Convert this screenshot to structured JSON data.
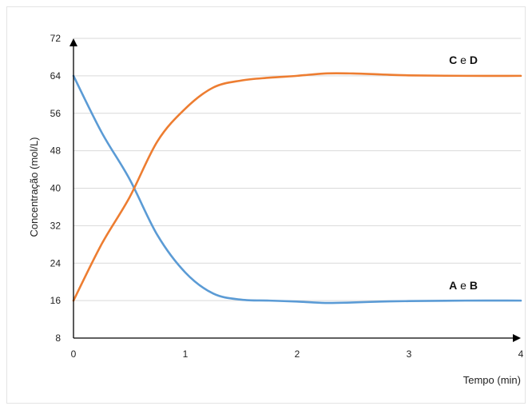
{
  "chart_data": {
    "type": "line",
    "xlabel": "Tempo (min)",
    "ylabel": "Concentração (mol/L)",
    "xlim": [
      0,
      4
    ],
    "ylim": [
      8,
      72
    ],
    "x_ticks": [
      "0",
      "1",
      "2",
      "3",
      "4"
    ],
    "y_ticks": [
      "8",
      "16",
      "24",
      "32",
      "40",
      "48",
      "56",
      "64",
      "72"
    ],
    "grid": "horizontal",
    "series": [
      {
        "name_parts": [
          "A",
          " e ",
          "B"
        ],
        "color": "#5b9bd5",
        "x": [
          0,
          0.25,
          0.5,
          0.75,
          1.0,
          1.25,
          1.5,
          1.75,
          2.0,
          2.25,
          2.5,
          2.75,
          3.0,
          3.5,
          4.0
        ],
        "y": [
          64,
          52,
          42,
          30,
          22,
          17.5,
          16.2,
          16,
          15.8,
          15.5,
          15.6,
          15.8,
          15.9,
          16,
          16
        ]
      },
      {
        "name_parts": [
          "C",
          " e ",
          "D"
        ],
        "color": "#ed7d31",
        "x": [
          0,
          0.25,
          0.5,
          0.75,
          1.0,
          1.25,
          1.5,
          1.75,
          2.0,
          2.25,
          2.5,
          2.75,
          3.0,
          3.5,
          4.0
        ],
        "y": [
          16,
          28,
          38,
          50,
          57,
          61.5,
          63,
          63.6,
          64,
          64.5,
          64.5,
          64.3,
          64.1,
          64,
          64
        ]
      }
    ]
  }
}
